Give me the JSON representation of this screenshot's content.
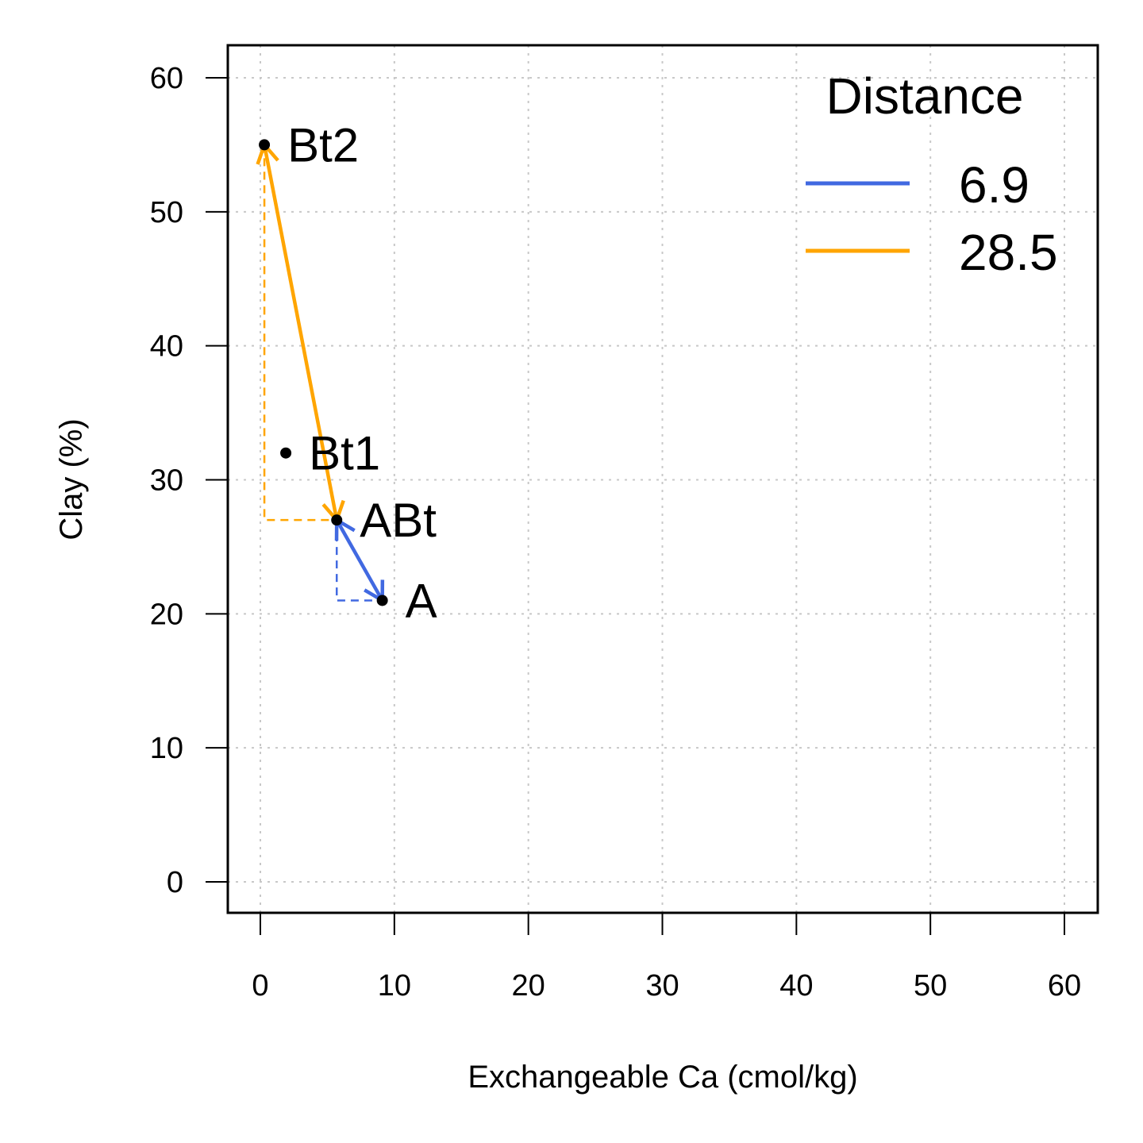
{
  "chart_data": {
    "type": "scatter",
    "xlabel": "Exchangeable Ca (cmol/kg)",
    "ylabel": "Clay (%)",
    "xlim": [
      0,
      60
    ],
    "ylim": [
      0,
      60
    ],
    "xticks": [
      "0",
      "10",
      "20",
      "30",
      "40",
      "50",
      "60"
    ],
    "yticks": [
      "0",
      "10",
      "20",
      "30",
      "40",
      "50",
      "60"
    ],
    "grid": true,
    "points": [
      {
        "label": "Bt2",
        "x": 0.3,
        "y": 55
      },
      {
        "label": "Bt1",
        "x": 1.9,
        "y": 32
      },
      {
        "label": "ABt",
        "x": 5.7,
        "y": 27
      },
      {
        "label": "A",
        "x": 9.1,
        "y": 21
      }
    ],
    "arrows": [
      {
        "from": "ABt",
        "to": "A",
        "color": "#4169E1",
        "distance": "6.9"
      },
      {
        "from": "ABt",
        "to": "Bt2",
        "color": "#FFA500",
        "distance": "28.5"
      }
    ],
    "legend": {
      "title": "Distance",
      "position": "top-right",
      "entries": [
        {
          "label": "6.9",
          "color": "#4169E1"
        },
        {
          "label": "28.5",
          "color": "#FFA500"
        }
      ]
    }
  }
}
